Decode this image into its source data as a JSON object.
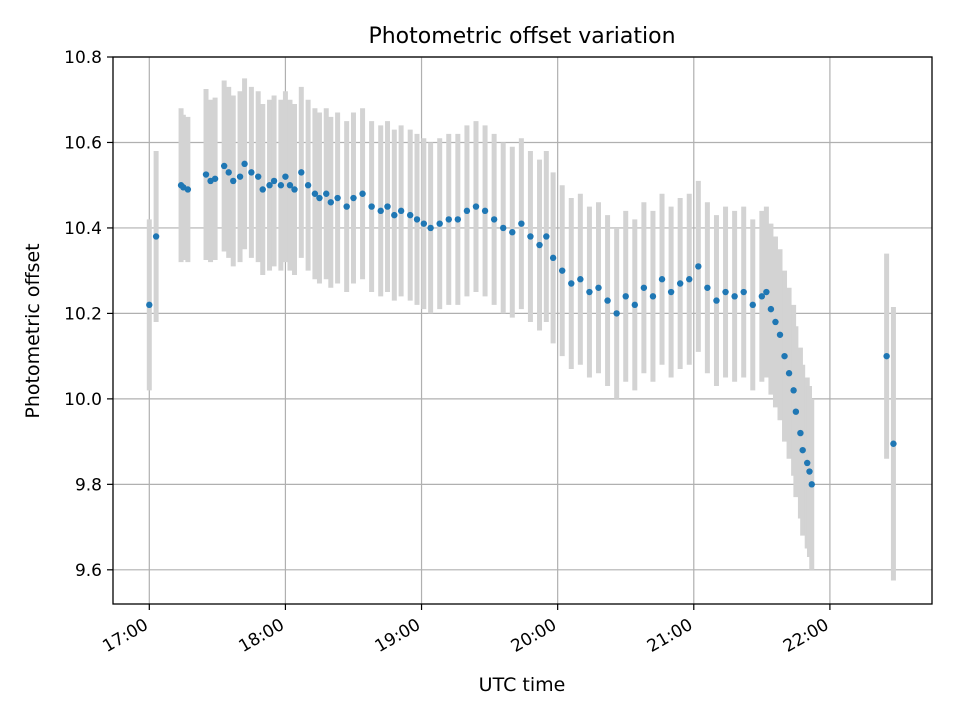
{
  "chart_data": {
    "type": "scatter",
    "title": "Photometric offset variation",
    "xlabel": "UTC time",
    "ylabel": "Photometric offset",
    "x_unit": "UTC time (HH:MM)",
    "xlim": [
      "16:44",
      "22:45"
    ],
    "ylim": [
      9.52,
      10.8
    ],
    "x_ticks": [
      "17:00",
      "18:00",
      "19:00",
      "20:00",
      "21:00",
      "22:00"
    ],
    "y_ticks": [
      "9.6",
      "9.8",
      "10.0",
      "10.2",
      "10.4",
      "10.6",
      "10.8"
    ],
    "grid": true,
    "legend": "none",
    "colors": {
      "points": "#1f77b4",
      "error_bars": "#d3d3d3",
      "grid": "#b0b0b0",
      "frame": "#000000"
    },
    "series": [
      {
        "x": [
          "17:00",
          "17:03",
          "17:14",
          "17:15",
          "17:17",
          "17:25",
          "17:27",
          "17:29",
          "17:33",
          "17:35",
          "17:37",
          "17:40",
          "17:42",
          "17:45",
          "17:48",
          "17:50",
          "17:53",
          "17:55",
          "17:58",
          "18:00",
          "18:02",
          "18:04",
          "18:07",
          "18:10",
          "18:13",
          "18:15",
          "18:18",
          "18:20",
          "18:23",
          "18:27",
          "18:30",
          "18:34",
          "18:38",
          "18:42",
          "18:45",
          "18:48",
          "18:51",
          "18:55",
          "18:58",
          "19:01",
          "19:04",
          "19:08",
          "19:12",
          "19:16",
          "19:20",
          "19:24",
          "19:28",
          "19:32",
          "19:36",
          "19:40",
          "19:44",
          "19:48",
          "19:52",
          "19:55",
          "19:58",
          "20:02",
          "20:06",
          "20:10",
          "20:14",
          "20:18",
          "20:22",
          "20:26",
          "20:30",
          "20:34",
          "20:38",
          "20:42",
          "20:46",
          "20:50",
          "20:54",
          "20:58",
          "21:02",
          "21:06",
          "21:10",
          "21:14",
          "21:18",
          "21:22",
          "21:26",
          "21:30",
          "21:32",
          "21:34",
          "21:36",
          "21:38",
          "21:40",
          "21:42",
          "21:44",
          "21:45",
          "21:47",
          "21:48",
          "21:50",
          "21:51",
          "21:52",
          "22:25",
          "22:28"
        ],
        "y": [
          10.22,
          10.38,
          10.5,
          10.495,
          10.49,
          10.525,
          10.51,
          10.515,
          10.545,
          10.53,
          10.51,
          10.52,
          10.55,
          10.53,
          10.52,
          10.49,
          10.5,
          10.51,
          10.5,
          10.52,
          10.5,
          10.49,
          10.53,
          10.5,
          10.48,
          10.47,
          10.48,
          10.46,
          10.47,
          10.45,
          10.47,
          10.48,
          10.45,
          10.44,
          10.45,
          10.43,
          10.44,
          10.43,
          10.42,
          10.41,
          10.4,
          10.41,
          10.42,
          10.42,
          10.44,
          10.45,
          10.44,
          10.42,
          10.4,
          10.39,
          10.41,
          10.38,
          10.36,
          10.38,
          10.33,
          10.3,
          10.27,
          10.28,
          10.25,
          10.26,
          10.23,
          10.2,
          10.24,
          10.22,
          10.26,
          10.24,
          10.28,
          10.25,
          10.27,
          10.28,
          10.31,
          10.26,
          10.23,
          10.25,
          10.24,
          10.25,
          10.22,
          10.24,
          10.25,
          10.21,
          10.18,
          10.15,
          10.1,
          10.06,
          10.02,
          9.97,
          9.92,
          9.88,
          9.85,
          9.83,
          9.8,
          10.1,
          9.895
        ],
        "error": [
          0.2,
          0.2,
          0.18,
          0.17,
          0.17,
          0.2,
          0.19,
          0.19,
          0.2,
          0.2,
          0.2,
          0.2,
          0.2,
          0.2,
          0.2,
          0.2,
          0.2,
          0.2,
          0.2,
          0.2,
          0.2,
          0.2,
          0.2,
          0.2,
          0.2,
          0.2,
          0.2,
          0.2,
          0.2,
          0.2,
          0.2,
          0.2,
          0.2,
          0.2,
          0.2,
          0.2,
          0.2,
          0.2,
          0.2,
          0.2,
          0.2,
          0.2,
          0.2,
          0.2,
          0.2,
          0.2,
          0.2,
          0.2,
          0.2,
          0.2,
          0.2,
          0.2,
          0.2,
          0.2,
          0.2,
          0.2,
          0.2,
          0.2,
          0.2,
          0.2,
          0.2,
          0.2,
          0.2,
          0.2,
          0.2,
          0.2,
          0.2,
          0.2,
          0.2,
          0.2,
          0.2,
          0.2,
          0.2,
          0.2,
          0.2,
          0.2,
          0.2,
          0.2,
          0.2,
          0.2,
          0.2,
          0.2,
          0.2,
          0.2,
          0.2,
          0.2,
          0.2,
          0.2,
          0.2,
          0.2,
          0.2,
          0.24,
          0.32
        ]
      }
    ]
  }
}
